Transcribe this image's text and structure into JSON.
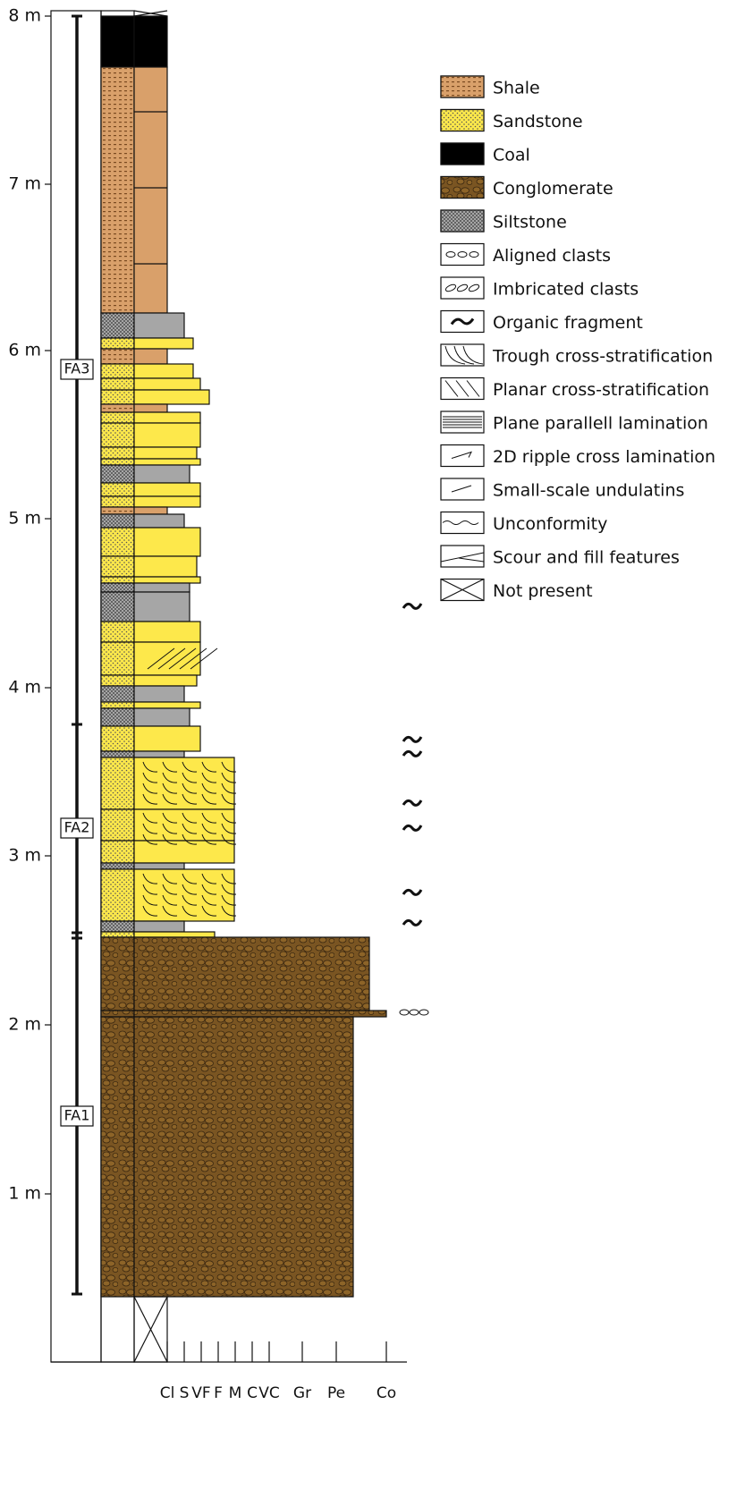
{
  "depth_axis": {
    "labels": [
      "8 m",
      "7 m",
      "6 m",
      "5 m",
      "4 m",
      "3 m",
      "2 m",
      "1 m"
    ]
  },
  "facies": [
    "FA3",
    "FA2",
    "FA1"
  ],
  "grain_size": [
    "Cl",
    "S",
    "VF",
    "F",
    "M",
    "C",
    "VC",
    "Gr",
    "Pe",
    "Co"
  ],
  "legend": [
    "Shale",
    "Sandstone",
    "Coal",
    "Conglomerate",
    "Siltstone",
    "Aligned clasts",
    "Imbricated clasts",
    "Organic fragment",
    "Trough cross-stratification",
    "Planar cross-stratification",
    "Plane parallell lamination",
    "2D ripple cross lamination",
    "Small-scale undulatins",
    "Unconformity",
    "Scour and fill features",
    "Not present"
  ]
}
